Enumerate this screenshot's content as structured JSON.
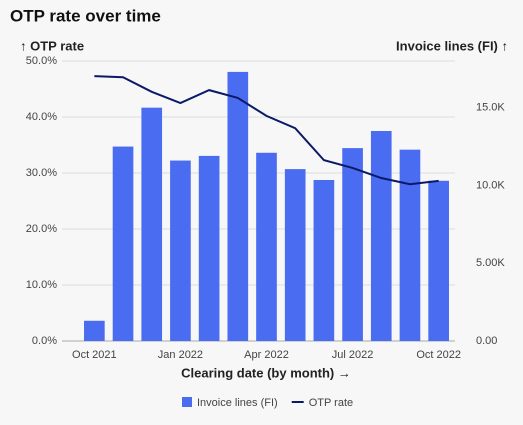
{
  "chart_data": {
    "type": "bar-line",
    "title": "OTP rate over time",
    "y_label": "↑ OTP rate",
    "y2_label": "Invoice lines (FI) ↑",
    "x_label": "Clearing date (by month) →",
    "categories": [
      "Oct 2021",
      null,
      null,
      "Jan 2022",
      null,
      null,
      "Apr 2022",
      null,
      null,
      "Jul 2022",
      null,
      null,
      "Oct 2022"
    ],
    "series": [
      {
        "name": "Invoice lines (FI)",
        "type": "bar",
        "axis": "y2",
        "color": "#4a6cf0",
        "values": [
          1300,
          12500,
          15000,
          11600,
          11900,
          17300,
          12100,
          11050,
          10350,
          12400,
          13500,
          12300,
          10300
        ]
      },
      {
        "name": "OTP rate",
        "type": "line",
        "color": "#0b1a66",
        "values": [
          47.3,
          47.1,
          44.5,
          42.5,
          44.8,
          43.4,
          40.2,
          38.0,
          32.3,
          30.9,
          29.1,
          28.0,
          28.6
        ]
      }
    ],
    "ylim": [
      0,
      50
    ],
    "yticks": [
      {
        "value": 0,
        "label": "0.0%"
      },
      {
        "value": 10,
        "label": "10.0%"
      },
      {
        "value": 20,
        "label": "20.0%"
      },
      {
        "value": 30,
        "label": "30.0%"
      },
      {
        "value": 40,
        "label": "40.0%"
      },
      {
        "value": 50,
        "label": "50.0%"
      }
    ],
    "y2lim": [
      0,
      18000
    ],
    "y2ticks": [
      {
        "value": 0,
        "label": "0.00"
      },
      {
        "value": 5000,
        "label": "5.00K"
      },
      {
        "value": 10000,
        "label": "10.0K"
      },
      {
        "value": 15000,
        "label": "15.0K"
      }
    ],
    "grid": true,
    "legend": "bottom"
  }
}
